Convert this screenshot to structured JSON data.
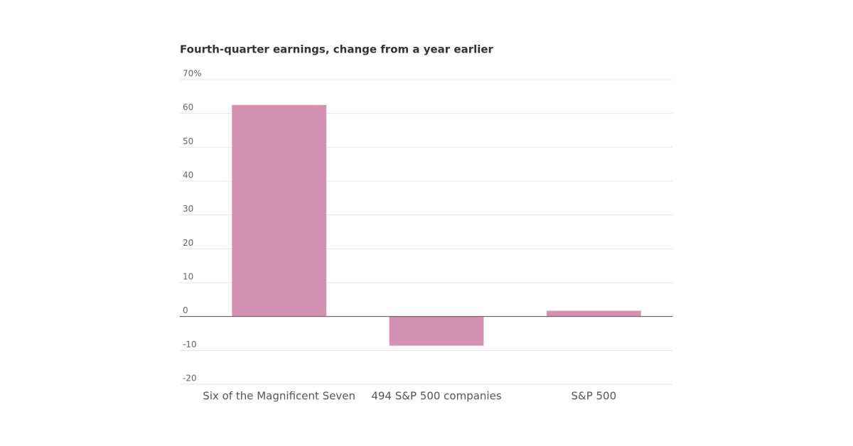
{
  "chart_data": {
    "type": "bar",
    "title": "Fourth-quarter earnings, change from a year earlier",
    "categories": [
      "Six of the Magnificent Seven",
      "494 S&P 500 companies",
      "S&P 500"
    ],
    "values": [
      62.5,
      -8.6,
      1.7
    ],
    "color": "#d492b3",
    "ylim": [
      -20,
      70
    ],
    "yticks": [
      -20,
      -10,
      0,
      10,
      20,
      30,
      40,
      50,
      60,
      {
        "value": 70,
        "label": "70%"
      }
    ],
    "grid": true
  }
}
